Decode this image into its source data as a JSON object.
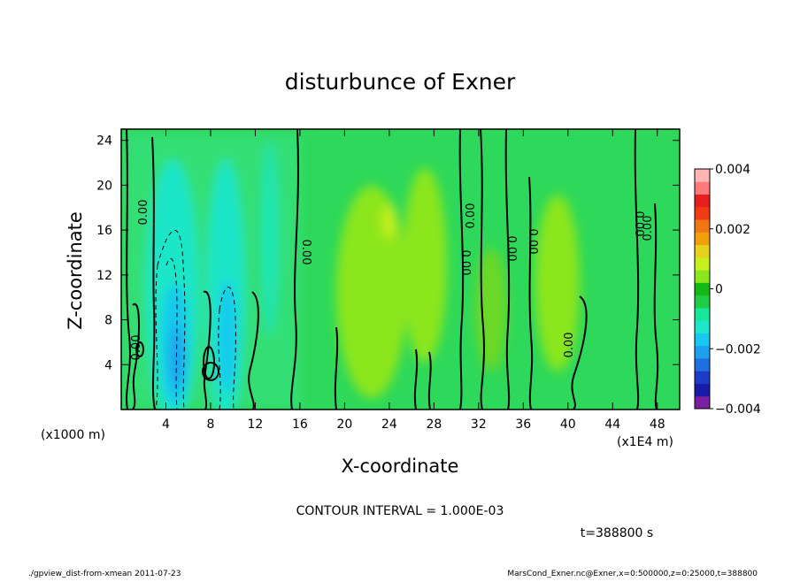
{
  "chart_data": {
    "type": "heatmap",
    "title": "disturbunce of Exner",
    "xlabel": "X-coordinate",
    "ylabel": "Z-coordinate",
    "x_unit_left": "(x1000 m)",
    "x_unit_right": "(x1E4 m)",
    "x_ticks": [
      4,
      8,
      12,
      16,
      20,
      24,
      28,
      32,
      36,
      40,
      44,
      48
    ],
    "y_ticks": [
      4,
      8,
      12,
      16,
      20,
      24
    ],
    "xlim": [
      0,
      50
    ],
    "ylim": [
      0,
      25
    ],
    "colorbar": {
      "labels": [
        "0.004",
        "0.002",
        "0",
        "−0.002",
        "−0.004"
      ],
      "range": [
        -0.004,
        0.004
      ],
      "colors": [
        "#7b1fa2",
        "#1a1aa8",
        "#1e3cc8",
        "#1f6fe0",
        "#1ea0f0",
        "#18c8f0",
        "#1ee6c8",
        "#18e69a",
        "#1ecc46",
        "#14b814",
        "#8ce61e",
        "#c8f01e",
        "#e6d21e",
        "#f0a00a",
        "#f07814",
        "#f03c14",
        "#e61e1e",
        "#ff7a7a",
        "#ffb4b4"
      ]
    },
    "contour_interval": "CONTOUR INTERVAL = 1.000E-03",
    "contour_labels": [
      "0.00",
      "0.00",
      "0.00",
      "0.00",
      "0.00",
      "0.00",
      "0.00",
      "0.00",
      "0.00",
      "0.00"
    ],
    "time_label": "t=388800 s",
    "footer_left": "./gpview_dist-from-xmean  2011-07-23",
    "footer_right": "MarsCond_Exner.nc@Exner,x=0:500000,z=0:25000,t=388800",
    "fields": [
      {
        "name": "negative-core-1",
        "x": 4.7,
        "z": 6,
        "value": -0.0017
      },
      {
        "name": "negative-core-2",
        "x": 9.5,
        "z": 7,
        "value": -0.0012
      },
      {
        "name": "positive-region-1",
        "x": 24,
        "z": 10,
        "value": 0.0007
      },
      {
        "name": "positive-region-2",
        "x": 38,
        "z": 10,
        "value": 0.0006
      }
    ]
  }
}
